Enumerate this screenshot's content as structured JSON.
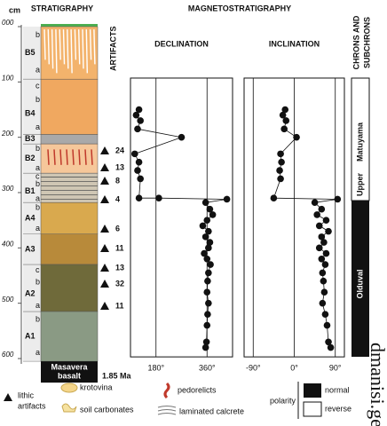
{
  "header": {
    "stratigraphy": "STRATIGRAPHY",
    "artifacts": "ARTIFACTS",
    "magnetostratigraphy": "MAGNETOSTRATIGRAPHY",
    "chrons": [
      "CHRONS AND",
      "SUBCHRONS"
    ]
  },
  "depth_axis": {
    "unit": "cm",
    "lim": [
      0,
      600
    ],
    "ticks": [
      {
        "value": 0,
        "label": "000"
      },
      100,
      200,
      300,
      400,
      500,
      600
    ]
  },
  "units": [
    {
      "label": "B5",
      "sub": [
        "b",
        "a"
      ]
    },
    {
      "label": "B4",
      "sub": [
        "c",
        "b",
        "a"
      ]
    },
    {
      "label": "B3",
      "sub": []
    },
    {
      "label": "B2",
      "sub": [
        "b",
        "a"
      ]
    },
    {
      "label": "B1",
      "sub": [
        "c",
        "b",
        "a"
      ]
    },
    {
      "label": "A4",
      "sub": [
        "b",
        "a"
      ]
    },
    {
      "label": "A3",
      "sub": []
    },
    {
      "label": "A2",
      "sub": [
        "c",
        "b",
        "a"
      ]
    },
    {
      "label": "A1",
      "sub": [
        "b",
        "a"
      ]
    }
  ],
  "basalt": {
    "label": [
      "Masavera",
      "basalt"
    ],
    "age": "1.85 Ma"
  },
  "artifacts": [
    24,
    13,
    8,
    4,
    6,
    11,
    13,
    32,
    11
  ],
  "chart_data": [
    {
      "type": "line",
      "title": "DECLINATION",
      "xlim": [
        90,
        450
      ],
      "ylim": [
        93,
        597
      ],
      "grid": true,
      "color": "#111111",
      "xticks": [
        {
          "value": 180,
          "label": "180°"
        },
        {
          "value": 360,
          "label": "360°"
        }
      ],
      "depth": [
        150,
        160,
        170,
        185,
        200,
        230,
        245,
        260,
        275,
        310,
        310,
        312,
        318,
        330,
        340,
        350,
        360,
        370,
        380,
        390,
        400,
        410,
        420,
        430,
        445,
        460,
        480,
        500,
        520,
        540,
        570,
        580
      ],
      "values": [
        120,
        110,
        125,
        115,
        270,
        105,
        120,
        115,
        125,
        120,
        190,
        430,
        355,
        370,
        380,
        360,
        345,
        365,
        355,
        370,
        365,
        350,
        360,
        372,
        365,
        362,
        360,
        365,
        362,
        360,
        358,
        355
      ]
    },
    {
      "type": "line",
      "title": "INCLINATION",
      "xlim": [
        -110,
        110
      ],
      "ylim": [
        93,
        597
      ],
      "grid": true,
      "color": "#111111",
      "xticks": [
        {
          "value": -90,
          "label": "-90°"
        },
        {
          "value": 0,
          "label": "0°"
        },
        {
          "value": 90,
          "label": "90°"
        }
      ],
      "depth": [
        150,
        160,
        170,
        185,
        200,
        230,
        245,
        260,
        275,
        310,
        312,
        318,
        330,
        340,
        350,
        360,
        370,
        380,
        390,
        400,
        410,
        420,
        430,
        445,
        460,
        480,
        500,
        520,
        540,
        570,
        580
      ],
      "values": [
        -20,
        -25,
        -18,
        -22,
        5,
        -30,
        -28,
        -32,
        -30,
        -45,
        95,
        45,
        60,
        50,
        70,
        55,
        75,
        60,
        65,
        55,
        70,
        60,
        68,
        62,
        64,
        66,
        62,
        68,
        72,
        75,
        80
      ]
    }
  ],
  "chrons": {
    "upper": "Upper",
    "matuyama": "Matuyama",
    "olduval": "Olduval"
  },
  "legend": {
    "lithic": [
      "lithic",
      "artifacts"
    ],
    "krotovina": "krotovina",
    "soil_carbonates": "soil carbonates",
    "pedorelicts": "pedorelicts",
    "laminated_calcrete": "laminated calcrete",
    "polarity": "polarity",
    "normal": "normal",
    "reverse": "reverse"
  },
  "watermark": "dmanisi.ge"
}
